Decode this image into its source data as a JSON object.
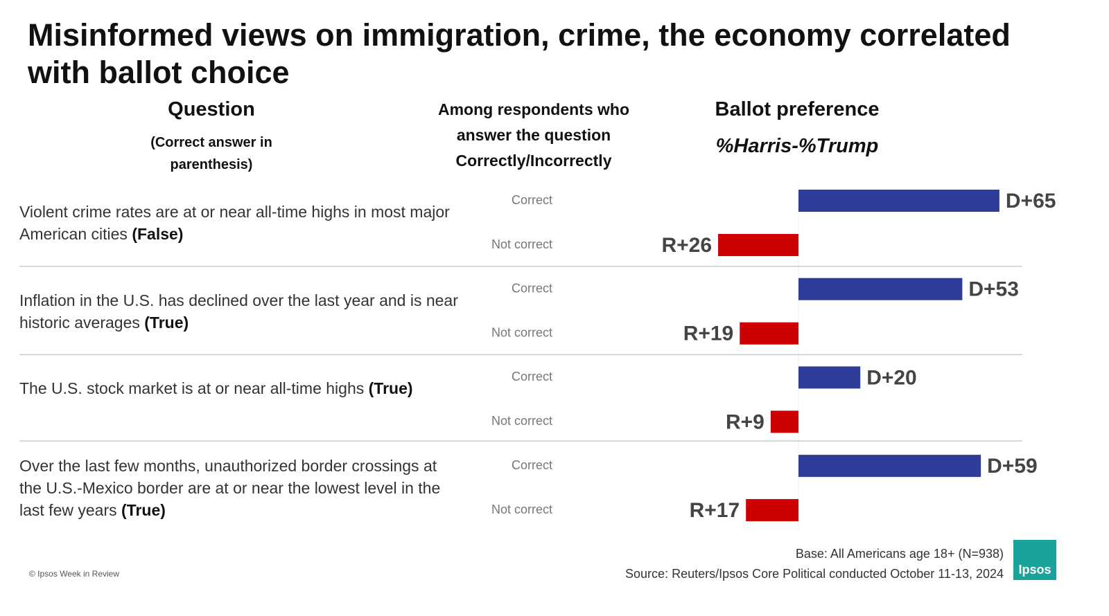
{
  "chart_data": {
    "type": "bar",
    "title": "Misinformed views on immigration, crime, the economy correlated with ballot choice",
    "headers": {
      "question": "Question",
      "question_note": "(Correct answer in parenthesis)",
      "respondents": "Among respondents who answer the question Correctly/Incorrectly",
      "ballot": "Ballot preference",
      "ballot_note": "%Harris-%Trump"
    },
    "categories": [
      "Violent crime rates are at or near all-time highs in most major American cities",
      "Inflation in the U.S. has declined over the last year and is near historic averages",
      "The U.S. stock market is at or near all-time highs",
      "Over the last few months, unauthorized border crossings at the U.S.-Mexico border are at or near the lowest level in the last few years"
    ],
    "answers": [
      "(False)",
      "(True)",
      "(True)",
      "(True)"
    ],
    "series": [
      {
        "name": "Correct",
        "color": "#2f3d99",
        "values": [
          65,
          53,
          20,
          59
        ],
        "value_labels": [
          "D+65",
          "D+53",
          "D+20",
          "D+59"
        ]
      },
      {
        "name": "Not correct",
        "color": "#cc0000",
        "values": [
          -26,
          -19,
          -9,
          -17
        ],
        "value_labels": [
          "R+26",
          "R+19",
          "R+9",
          "R+17"
        ]
      }
    ],
    "base": "Base: All Americans age 18+ (N=938)",
    "source": "Source: Reuters/Ipsos Core Political conducted October 11-13, 2024",
    "copyright": "© Ipsos Week in Review",
    "logo": "Ipsos"
  }
}
